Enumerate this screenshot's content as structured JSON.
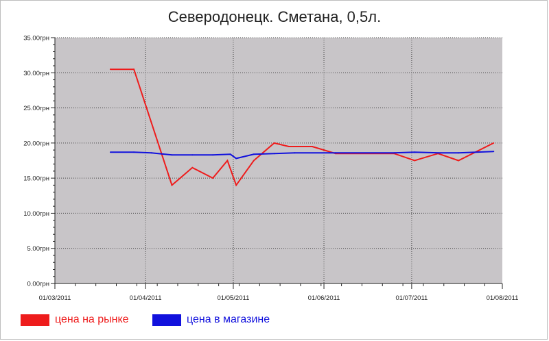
{
  "chart_data": {
    "type": "line",
    "title": "Северодонецк. Сметана, 0,5л.",
    "xlabel": "",
    "ylabel": "",
    "ylim": [
      0,
      35
    ],
    "y_ticks": [
      0,
      5,
      10,
      15,
      20,
      25,
      30,
      35
    ],
    "y_tick_labels": [
      "0.00грн",
      "5.00грн",
      "10.00грн",
      "15.00грн",
      "20.00грн",
      "25.00грн",
      "30.00грн",
      "35.00грн"
    ],
    "x_range": [
      "2011-03-01",
      "2011-08-01"
    ],
    "x_ticks": [
      "2011-03-01",
      "2011-04-01",
      "2011-05-01",
      "2011-06-01",
      "2011-07-01",
      "2011-08-01"
    ],
    "x_tick_labels": [
      "01/03/2011",
      "01/04/2011",
      "01/05/2011",
      "01/06/2011",
      "01/07/2011",
      "01/08/2011"
    ],
    "grid": true,
    "legend_position": "bottom",
    "series": [
      {
        "name": "цена на рынке",
        "color": "#ee1c1c",
        "points": [
          {
            "x": "2011-03-20",
            "y": 30.5
          },
          {
            "x": "2011-03-28",
            "y": 30.5
          },
          {
            "x": "2011-04-10",
            "y": 14.0
          },
          {
            "x": "2011-04-17",
            "y": 16.5
          },
          {
            "x": "2011-04-24",
            "y": 15.0
          },
          {
            "x": "2011-04-29",
            "y": 17.5
          },
          {
            "x": "2011-05-02",
            "y": 14.0
          },
          {
            "x": "2011-05-08",
            "y": 17.5
          },
          {
            "x": "2011-05-15",
            "y": 20.0
          },
          {
            "x": "2011-05-20",
            "y": 19.5
          },
          {
            "x": "2011-05-28",
            "y": 19.5
          },
          {
            "x": "2011-06-05",
            "y": 18.5
          },
          {
            "x": "2011-06-25",
            "y": 18.5
          },
          {
            "x": "2011-07-02",
            "y": 17.5
          },
          {
            "x": "2011-07-10",
            "y": 18.5
          },
          {
            "x": "2011-07-17",
            "y": 17.5
          },
          {
            "x": "2011-07-29",
            "y": 20.0
          }
        ]
      },
      {
        "name": "цена в магазине",
        "color": "#1111dd",
        "points": [
          {
            "x": "2011-03-20",
            "y": 18.7
          },
          {
            "x": "2011-03-28",
            "y": 18.7
          },
          {
            "x": "2011-04-03",
            "y": 18.6
          },
          {
            "x": "2011-04-10",
            "y": 18.3
          },
          {
            "x": "2011-04-17",
            "y": 18.3
          },
          {
            "x": "2011-04-24",
            "y": 18.3
          },
          {
            "x": "2011-04-30",
            "y": 18.4
          },
          {
            "x": "2011-05-02",
            "y": 17.8
          },
          {
            "x": "2011-05-08",
            "y": 18.4
          },
          {
            "x": "2011-05-15",
            "y": 18.5
          },
          {
            "x": "2011-05-22",
            "y": 18.6
          },
          {
            "x": "2011-06-05",
            "y": 18.6
          },
          {
            "x": "2011-06-25",
            "y": 18.6
          },
          {
            "x": "2011-07-02",
            "y": 18.7
          },
          {
            "x": "2011-07-10",
            "y": 18.6
          },
          {
            "x": "2011-07-17",
            "y": 18.6
          },
          {
            "x": "2011-07-29",
            "y": 18.8
          }
        ]
      }
    ]
  },
  "legend": {
    "items": [
      {
        "label": "цена на рынке",
        "color": "#ee1c1c"
      },
      {
        "label": "цена в магазине",
        "color": "#1111dd"
      }
    ]
  }
}
